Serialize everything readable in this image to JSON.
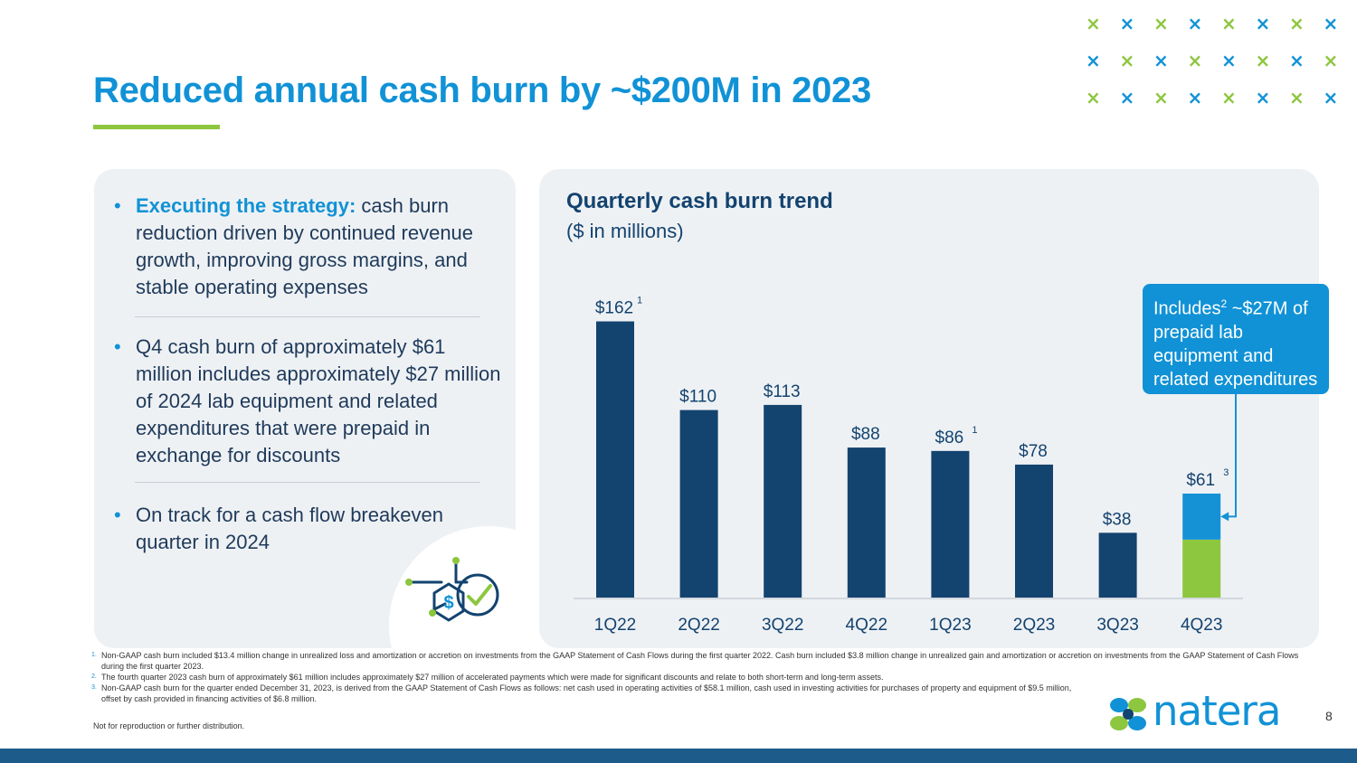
{
  "title": "Reduced annual cash burn by ~$200M in 2023",
  "bullets": [
    {
      "highlight": "Executing the strategy:",
      "text": " cash burn reduction driven by continued revenue growth, improving gross margins, and stable operating expenses"
    },
    {
      "highlight": "",
      "text": "Q4 cash burn of approximately $61 million includes approximately $27 million of 2024 lab equipment and related expenditures that were prepaid in exchange for discounts"
    },
    {
      "highlight": "",
      "text": "On track for a cash flow breakeven quarter in 2024"
    }
  ],
  "callout": {
    "prefix": "Includes",
    "sup": "2",
    "text": " ~$27M of prepaid lab equipment and related expenditures"
  },
  "chart_data": {
    "type": "bar",
    "title": "Quarterly cash burn trend",
    "subtitle": "($ in millions)",
    "categories": [
      "1Q22",
      "2Q22",
      "3Q22",
      "4Q22",
      "1Q23",
      "2Q23",
      "3Q23",
      "4Q23"
    ],
    "values": [
      162,
      110,
      113,
      88,
      86,
      78,
      38,
      61
    ],
    "labels": [
      "$162",
      "$110",
      "$113",
      "$88",
      "$86",
      "$78",
      "$38",
      "$61"
    ],
    "label_footnotes": [
      "1",
      "",
      "",
      "",
      "1",
      "",
      "",
      "3"
    ],
    "stacked_last": {
      "base": 34,
      "prepaid": 27
    },
    "ylim": [
      0,
      175
    ],
    "colors": {
      "bar": "#13436f",
      "prepaid": "#1592d6",
      "base_last": "#8dc63f",
      "axis": "#c9d0d7"
    }
  },
  "footnotes": [
    {
      "num": "1.",
      "text": "Non-GAAP cash burn included $13.4 million change in unrealized loss and amortization or accretion on investments from the GAAP Statement of Cash Flows during the first quarter 2022. Cash burn included $3.8 million change in unrealized gain and amortization or accretion on investments from the GAAP Statement of Cash Flows during the first quarter 2023."
    },
    {
      "num": "2.",
      "text": "The fourth quarter 2023 cash burn of approximately $61 million includes approximately $27 million of accelerated payments which were made for significant discounts and relate to both short-term and long-term assets."
    },
    {
      "num": "3.",
      "text": "Non-GAAP cash burn for the quarter ended December 31, 2023, is derived from  the GAAP Statement of Cash Flows as follows: net cash used in operating activities of $58.1 million,  cash used in investing activities for purchases of property and equipment of $9.5 million, offset by cash provided in financing activities of $6.8 million."
    }
  ],
  "disclaimer": "Not for reproduction or further distribution.",
  "logo": "natera",
  "page_number": "8",
  "colors": {
    "brand_blue": "#1192d6",
    "brand_green": "#8dc63f",
    "navy": "#13436f"
  }
}
